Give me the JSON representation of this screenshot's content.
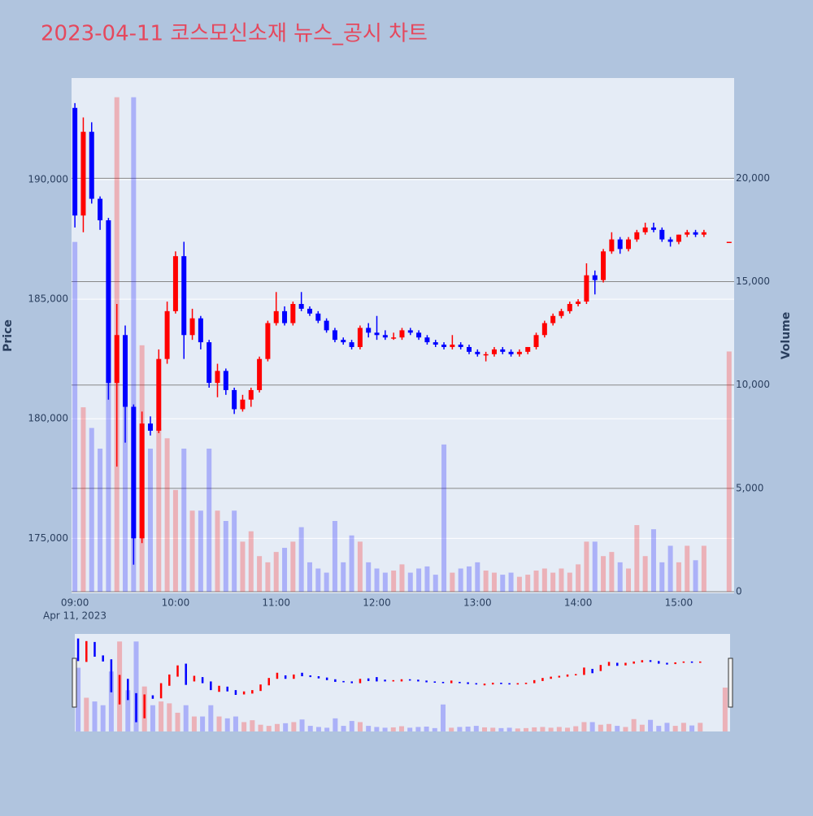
{
  "chart_data": {
    "type": "candlestick",
    "title": "2023-04-11 코스모신소재 뉴스_공시 차트",
    "y_title": "Price",
    "y2_title": "Volume",
    "x_date_label": "Apr 11, 2023",
    "up_color": "#ff0000",
    "down_color": "#0000ff",
    "xlim": [
      "08:58",
      "15:33"
    ],
    "xticks": [
      "09:00",
      "10:00",
      "11:00",
      "12:00",
      "13:00",
      "14:00",
      "15:00"
    ],
    "ylim": [
      172700,
      194250
    ],
    "yticks": [
      {
        "value": 175000,
        "label": "175,000"
      },
      {
        "value": 180000,
        "label": "180,000"
      },
      {
        "value": 185000,
        "label": "185,000"
      },
      {
        "value": 190000,
        "label": "190,000"
      }
    ],
    "y2lim": [
      0,
      24930
    ],
    "y2ticks": [
      0,
      {
        "value": 5000,
        "label": "5,000"
      },
      {
        "value": 10000,
        "label": "10,000"
      },
      {
        "value": 15000,
        "label": "15,000"
      },
      {
        "value": 20000,
        "label": "20,000"
      }
    ],
    "x": [
      "09:00",
      "09:05",
      "09:10",
      "09:15",
      "09:20",
      "09:25",
      "09:30",
      "09:35",
      "09:40",
      "09:45",
      "09:50",
      "09:55",
      "10:00",
      "10:05",
      "10:10",
      "10:15",
      "10:20",
      "10:25",
      "10:30",
      "10:35",
      "10:40",
      "10:45",
      "10:50",
      "10:55",
      "11:00",
      "11:05",
      "11:10",
      "11:15",
      "11:20",
      "11:25",
      "11:30",
      "11:35",
      "11:40",
      "11:45",
      "11:50",
      "11:55",
      "12:00",
      "12:05",
      "12:10",
      "12:15",
      "12:20",
      "12:25",
      "12:30",
      "12:35",
      "12:40",
      "12:45",
      "12:50",
      "12:55",
      "13:00",
      "13:05",
      "13:10",
      "13:15",
      "13:20",
      "13:25",
      "13:30",
      "13:35",
      "13:40",
      "13:45",
      "13:50",
      "13:55",
      "14:00",
      "14:05",
      "14:10",
      "14:15",
      "14:20",
      "14:25",
      "14:30",
      "14:35",
      "14:40",
      "14:45",
      "14:50",
      "14:55",
      "15:00",
      "15:05",
      "15:10",
      "15:15",
      "15:30"
    ],
    "open": [
      193000,
      188500,
      192000,
      189200,
      188300,
      181500,
      183500,
      180500,
      175000,
      179800,
      179500,
      182500,
      184500,
      186800,
      183500,
      184200,
      183200,
      181500,
      182000,
      181200,
      180400,
      180800,
      181200,
      182500,
      184000,
      184500,
      184000,
      184800,
      184600,
      184400,
      184100,
      183700,
      183300,
      183200,
      183000,
      183800,
      183600,
      183500,
      183400,
      183400,
      183700,
      183600,
      183400,
      183200,
      183100,
      183000,
      183100,
      183000,
      182800,
      182700,
      182700,
      182900,
      182800,
      182700,
      182800,
      183000,
      183500,
      184000,
      184300,
      184500,
      184800,
      184900,
      186000,
      185800,
      187000,
      187500,
      187100,
      187500,
      187800,
      188000,
      187900,
      187500,
      187400,
      187700,
      187800,
      187700,
      187400
    ],
    "high": [
      193200,
      192600,
      192400,
      189300,
      188400,
      184800,
      183900,
      180600,
      180300,
      180100,
      182900,
      184900,
      187000,
      187400,
      184600,
      184300,
      183300,
      182300,
      182100,
      181300,
      181000,
      181300,
      182600,
      184100,
      185300,
      184700,
      184900,
      185300,
      184700,
      184500,
      184200,
      183800,
      183400,
      183300,
      183900,
      184000,
      184300,
      183700,
      183600,
      183800,
      183800,
      183700,
      183500,
      183300,
      183200,
      183500,
      183200,
      183100,
      182900,
      182800,
      183000,
      183000,
      182900,
      182900,
      183000,
      183600,
      184100,
      184400,
      184600,
      184900,
      185000,
      186500,
      186200,
      187100,
      187800,
      187600,
      187600,
      187900,
      188200,
      188200,
      188000,
      187600,
      187700,
      187900,
      187900,
      187900,
      187400
    ],
    "low": [
      188000,
      187800,
      189000,
      187900,
      180800,
      178000,
      179000,
      173900,
      174800,
      179300,
      179400,
      182300,
      184400,
      182500,
      183300,
      182900,
      181300,
      180900,
      181000,
      180200,
      180300,
      180500,
      181100,
      182400,
      183900,
      183900,
      183900,
      184500,
      184300,
      184000,
      183600,
      183200,
      183100,
      182900,
      182900,
      183400,
      183300,
      183300,
      183300,
      183300,
      183500,
      183300,
      183100,
      183000,
      182900,
      182900,
      182900,
      182700,
      182600,
      182400,
      182600,
      182700,
      182600,
      182600,
      182700,
      182900,
      183400,
      183900,
      184200,
      184400,
      184700,
      184800,
      185200,
      185700,
      186900,
      186900,
      187000,
      187400,
      187700,
      187800,
      187400,
      187200,
      187300,
      187600,
      187600,
      187600,
      187400
    ],
    "close": [
      188500,
      192000,
      189200,
      188300,
      181500,
      183500,
      180500,
      175000,
      179800,
      179500,
      182500,
      184500,
      186800,
      183500,
      184200,
      183200,
      181500,
      182000,
      181200,
      180400,
      180800,
      181200,
      182500,
      184000,
      184500,
      184000,
      184800,
      184600,
      184400,
      184100,
      183700,
      183300,
      183200,
      183000,
      183800,
      183600,
      183500,
      183400,
      183400,
      183700,
      183600,
      183400,
      183200,
      183100,
      183000,
      183100,
      183000,
      182800,
      182700,
      182700,
      182900,
      182800,
      182700,
      182800,
      183000,
      183500,
      184000,
      184300,
      184500,
      184800,
      184900,
      186000,
      185800,
      187000,
      187500,
      187100,
      187500,
      187800,
      188000,
      187900,
      187500,
      187400,
      187700,
      187800,
      187700,
      187800,
      187400
    ],
    "volume": [
      17000,
      9000,
      8000,
      7000,
      16000,
      24000,
      11000,
      24000,
      12000,
      7000,
      8000,
      7500,
      5000,
      7000,
      4000,
      4000,
      7000,
      4000,
      3500,
      4000,
      2500,
      3000,
      1800,
      1500,
      2000,
      2200,
      2500,
      3200,
      1500,
      1200,
      1000,
      3500,
      1500,
      2800,
      2500,
      1500,
      1200,
      1000,
      1100,
      1400,
      1000,
      1200,
      1300,
      900,
      7200,
      1000,
      1200,
      1300,
      1500,
      1100,
      1000,
      900,
      1000,
      800,
      900,
      1100,
      1200,
      1000,
      1200,
      1000,
      1400,
      2500,
      2500,
      1800,
      2000,
      1500,
      1200,
      3300,
      1800,
      3100,
      1500,
      2300,
      1500,
      2300,
      1600,
      2300,
      11700
    ]
  }
}
